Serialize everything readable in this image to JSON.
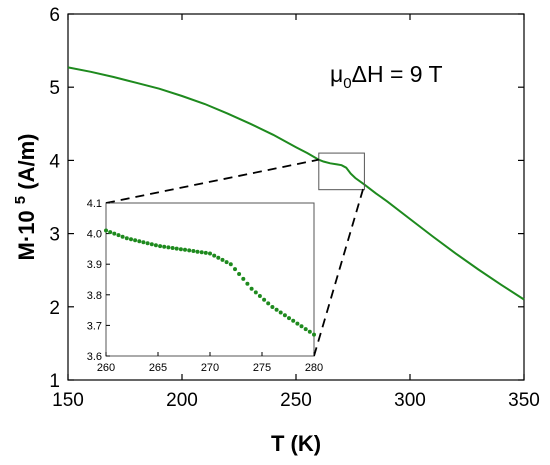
{
  "chart_data": [
    {
      "id": "main",
      "type": "line",
      "xlabel": "T (K)",
      "ylabel": "M·10⁵ (A/m)",
      "xlim": [
        150,
        350
      ],
      "ylim": [
        1,
        6
      ],
      "xticks": [
        150,
        200,
        250,
        300,
        350
      ],
      "yticks": [
        1,
        2,
        3,
        4,
        5,
        6
      ],
      "grid": false,
      "annotation": {
        "prefix": "μ",
        "sub": "0",
        "suffix": "ΔH = 9 T"
      },
      "series_color": "#1e8a1e",
      "series": [
        {
          "x": [
            150,
            160,
            170,
            180,
            190,
            200,
            210,
            220,
            230,
            240,
            250,
            255,
            260,
            262,
            265,
            268,
            270,
            272,
            274,
            276,
            280,
            285,
            290,
            300,
            310,
            320,
            330,
            340,
            350
          ],
          "y": [
            5.27,
            5.21,
            5.14,
            5.06,
            4.98,
            4.88,
            4.77,
            4.64,
            4.5,
            4.35,
            4.18,
            4.1,
            4.01,
            3.985,
            3.96,
            3.945,
            3.935,
            3.9,
            3.82,
            3.76,
            3.67,
            3.55,
            3.44,
            3.2,
            2.96,
            2.73,
            2.51,
            2.3,
            2.1
          ]
        }
      ],
      "zoom_box": {
        "x": [
          260,
          280
        ],
        "y": [
          3.6,
          4.1
        ]
      }
    },
    {
      "id": "inset",
      "type": "scatter",
      "xlim": [
        260,
        280
      ],
      "ylim": [
        3.6,
        4.1
      ],
      "xticks": [
        260,
        265,
        270,
        275,
        280
      ],
      "yticks": [
        "3.6",
        "3.7",
        "3.8",
        "3.9",
        "4.0",
        "4.1"
      ],
      "grid": false,
      "marker_color": "#1e8a1e",
      "series": [
        {
          "x": [
            260,
            280
          ],
          "y": [
            4.01,
            3.67
          ]
        }
      ]
    }
  ]
}
